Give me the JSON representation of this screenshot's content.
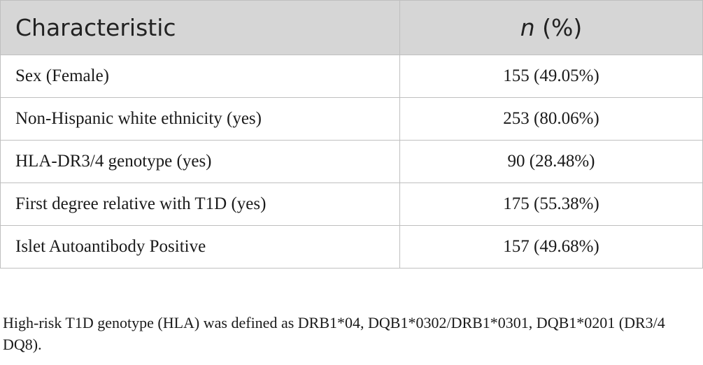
{
  "table": {
    "header": {
      "characteristic": "Characteristic",
      "n_italic": "n",
      "percent": " (%)"
    },
    "rows": [
      {
        "label": "Sex (Female)",
        "value": "155 (49.05%)"
      },
      {
        "label": "Non-Hispanic white ethnicity (yes)",
        "value": "253 (80.06%)"
      },
      {
        "label": "HLA-DR3/4 genotype (yes)",
        "value": "90 (28.48%)"
      },
      {
        "label": "First degree relative with T1D (yes)",
        "value": "175 (55.38%)"
      },
      {
        "label": "Islet Autoantibody Positive",
        "value": "157 (49.68%)"
      }
    ]
  },
  "footnote": "High-risk T1D genotype (HLA) was defined as DRB1*04, DQB1*0302/DRB1*0301, DQB1*0201 (DR3/4 DQ8)."
}
